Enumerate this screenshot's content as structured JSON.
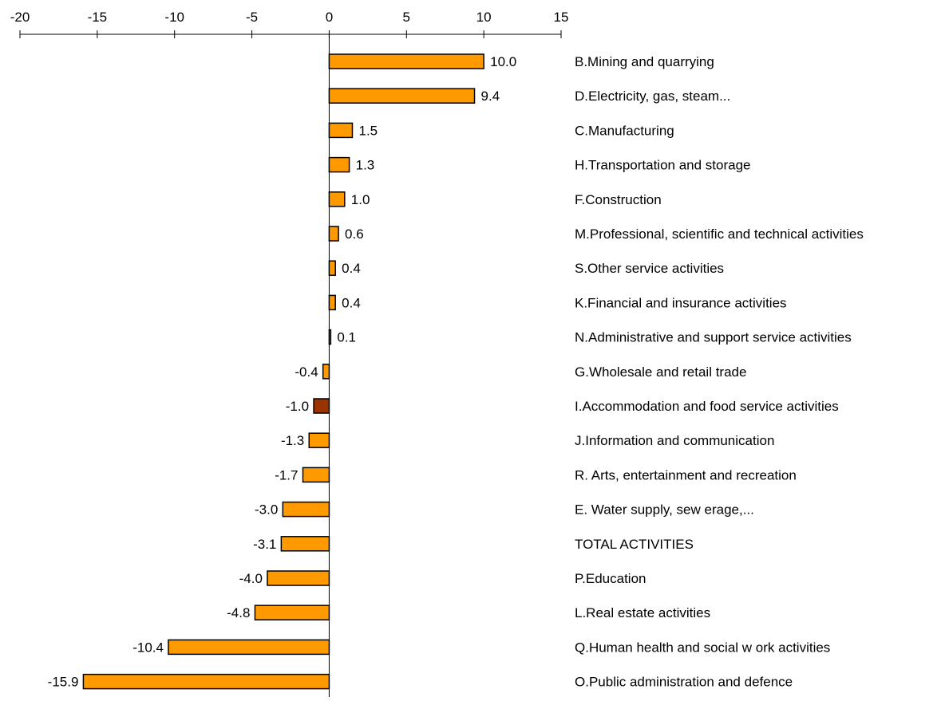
{
  "chart_data": {
    "type": "bar",
    "orientation": "horizontal",
    "xlim": [
      -20,
      15
    ],
    "x_ticks": [
      -20,
      -15,
      -10,
      -5,
      0,
      5,
      10,
      15
    ],
    "axis_position": "top",
    "grid": false,
    "legend": "none",
    "categories": [
      "B.Mining and quarrying",
      "D.Electricity, gas, steam...",
      "C.Manufacturing",
      "H.Transportation and storage",
      "F.Construction",
      "M.Professional, scientific and technical activities",
      "S.Other service activities",
      "K.Financial and insurance activities",
      "N.Administrative and support service activities",
      "G.Wholesale and retail trade",
      "I.Accommodation and food service activities",
      "J.Information and communication",
      "R. Arts, entertainment and recreation",
      "E. Water supply, sew erage,...",
      "TOTAL ACTIVITIES",
      "P.Education",
      "L.Real estate activities",
      "Q.Human health and social w ork activities",
      "O.Public administration and defence"
    ],
    "values": [
      10.0,
      9.4,
      1.5,
      1.3,
      1.0,
      0.6,
      0.4,
      0.4,
      0.1,
      -0.4,
      -1.0,
      -1.3,
      -1.7,
      -3.0,
      -3.1,
      -4.0,
      -4.8,
      -10.4,
      -15.9
    ],
    "value_labels": [
      "10.0",
      "9.4",
      "1.5",
      "1.3",
      "1.0",
      "0.6",
      "0.4",
      "0.4",
      "0.1",
      "-0.4",
      "-1.0",
      "-1.3",
      "-1.7",
      "-3.0",
      "-3.1",
      "-4.0",
      "-4.8",
      "-10.4",
      "-15.9"
    ],
    "highlight_index": 10,
    "colors": {
      "bar": "#FF9900",
      "highlight": "#993300",
      "stroke": "#000000"
    }
  }
}
